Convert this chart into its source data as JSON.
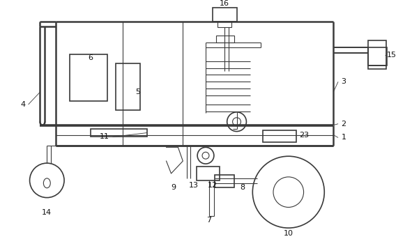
{
  "bg_color": "#ffffff",
  "line_color": "#3a3a3a",
  "label_color": "#111111",
  "fig_width": 5.91,
  "fig_height": 3.43,
  "dpi": 100
}
